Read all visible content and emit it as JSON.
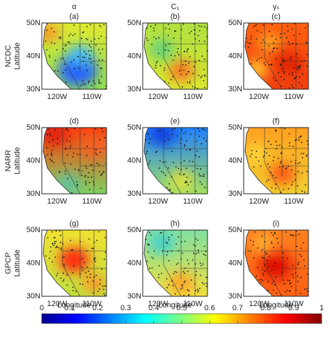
{
  "columns": [
    {
      "title": "α"
    },
    {
      "title": "C₁"
    },
    {
      "title": "γₛ"
    }
  ],
  "rows": [
    {
      "dataset": "NCDC",
      "axis_label": "Latitude",
      "panels": [
        "(a)",
        "(b)",
        "(c)"
      ]
    },
    {
      "dataset": "NARR",
      "axis_label": "Latitude",
      "panels": [
        "(d)",
        "(e)",
        "(f)"
      ]
    },
    {
      "dataset": "GPCP",
      "axis_label": "Latitude",
      "panels": [
        "(g)",
        "(h)",
        "(i)"
      ]
    }
  ],
  "lat_ticks": [
    "50N",
    "40N",
    "30N"
  ],
  "lon_ticks": [
    "120W",
    "110W"
  ],
  "x_axis_label": "Longitude",
  "colorbar": {
    "ticks": [
      0,
      0.1,
      0.2,
      0.3,
      0.4,
      0.5,
      0.6,
      0.7,
      0.8,
      0.9,
      1
    ]
  }
}
